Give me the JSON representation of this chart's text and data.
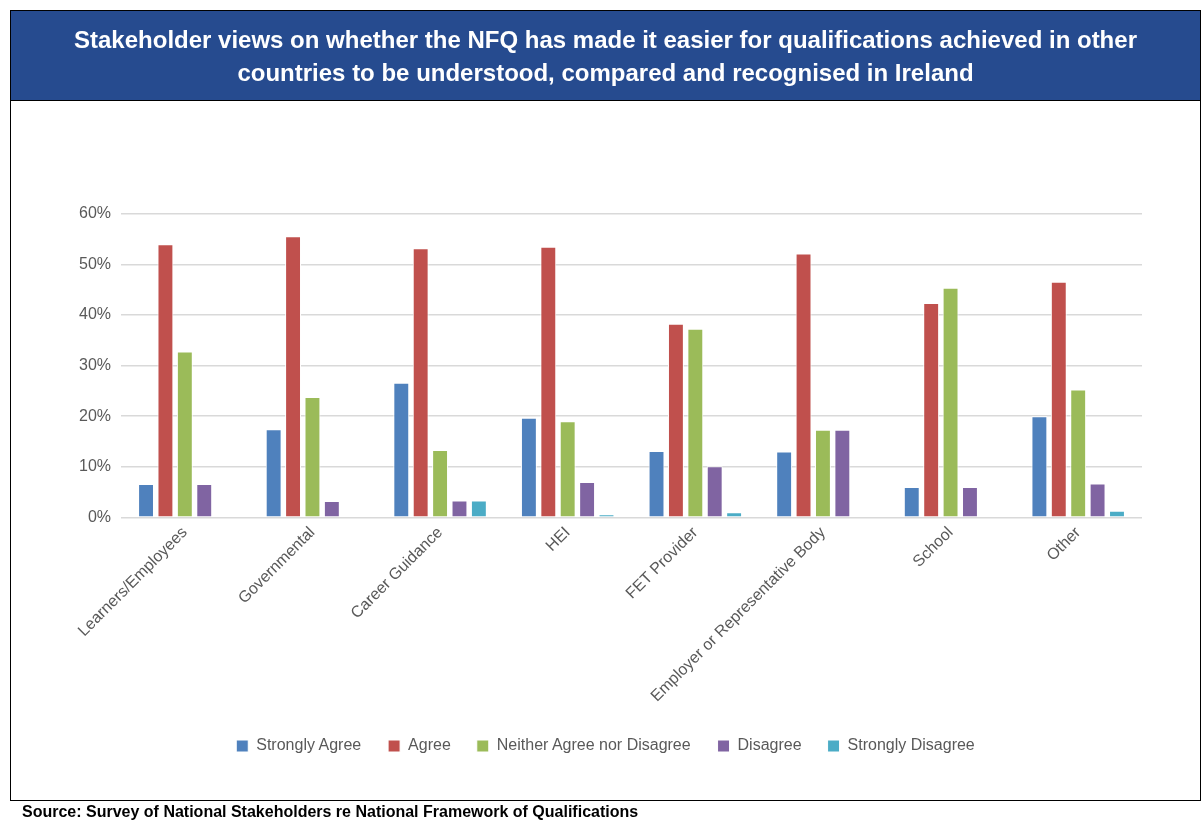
{
  "chart_data": {
    "type": "bar",
    "title": "Stakeholder views on whether the NFQ has made it easier for qualifications achieved in other countries to be understood, compared and recognised in Ireland",
    "categories": [
      "Learners/Employees",
      "Governmental",
      "Career Guidance",
      "HEI",
      "FET Provider",
      "Employer or Representative Body",
      "School",
      "Other"
    ],
    "series": [
      {
        "name": "Strongly Agree",
        "color": "#4f81bd",
        "values": [
          6.6,
          17.4,
          26.6,
          19.7,
          13.1,
          13.0,
          6.0,
          20.0
        ]
      },
      {
        "name": "Agree",
        "color": "#c0504d",
        "values": [
          54.0,
          55.6,
          53.2,
          53.5,
          38.3,
          52.2,
          42.4,
          46.6
        ]
      },
      {
        "name": "Neither Agree nor Disagree",
        "color": "#9bbb59",
        "values": [
          32.8,
          23.8,
          13.3,
          19.0,
          37.3,
          17.3,
          45.4,
          25.3
        ]
      },
      {
        "name": "Disagree",
        "color": "#8064a2",
        "values": [
          6.6,
          3.2,
          3.3,
          7.0,
          10.1,
          17.3,
          6.0,
          6.7
        ]
      },
      {
        "name": "Strongly Disagree",
        "color": "#4bacc6",
        "values": [
          null,
          null,
          3.3,
          0.6,
          1.0,
          null,
          null,
          1.3
        ]
      }
    ],
    "ylim": [
      0,
      60
    ],
    "yticks": [
      {
        "value": 0,
        "label": "0%"
      },
      {
        "value": 10,
        "label": "10%"
      },
      {
        "value": 20,
        "label": "20%"
      },
      {
        "value": 30,
        "label": "30%"
      },
      {
        "value": 40,
        "label": "40%"
      },
      {
        "value": 50,
        "label": "50%"
      },
      {
        "value": 60,
        "label": "60%"
      }
    ],
    "grid": "y",
    "legend": "bottom",
    "annotations": [
      "Source: Survey of National Stakeholders re National Framework of Qualifications"
    ]
  }
}
